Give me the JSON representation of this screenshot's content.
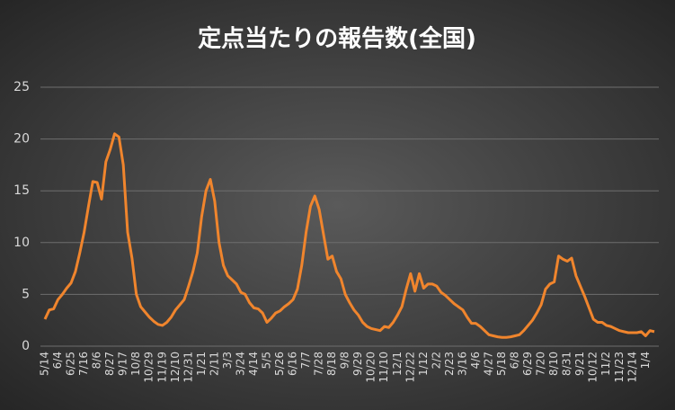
{
  "chart_data": {
    "type": "line",
    "title": "定点当たりの報告数(全国)",
    "categories": [
      "5/14",
      null,
      null,
      "6/4",
      null,
      null,
      "6/25",
      null,
      null,
      "7/16",
      null,
      null,
      "8/6",
      null,
      null,
      "8/27",
      null,
      null,
      "9/17",
      null,
      null,
      "10/8",
      null,
      null,
      "10/29",
      null,
      null,
      "11/19",
      null,
      null,
      "12/10",
      null,
      null,
      "12/31",
      null,
      null,
      "1/21",
      null,
      null,
      "2/11",
      null,
      null,
      "3/3",
      null,
      null,
      "3/24",
      null,
      null,
      "4/14",
      null,
      null,
      "5/5",
      null,
      null,
      "5/26",
      null,
      null,
      "6/16",
      null,
      null,
      "7/7",
      null,
      null,
      "7/28",
      null,
      null,
      "8/18",
      null,
      null,
      "9/8",
      null,
      null,
      "9/29",
      null,
      null,
      "10/20",
      null,
      null,
      "11/10",
      null,
      null,
      "12/1",
      null,
      null,
      "12/22",
      null,
      null,
      "1/12",
      null,
      null,
      "2/2",
      null,
      null,
      "2/23",
      null,
      null,
      "3/16",
      null,
      null,
      "4/6",
      null,
      null,
      "4/27",
      null,
      null,
      "5/18",
      null,
      null,
      "6/8",
      null,
      null,
      "6/29",
      null,
      null,
      "7/20",
      null,
      null,
      "8/10",
      null,
      null,
      "8/31",
      null,
      null,
      "9/21",
      null,
      null,
      "10/12",
      null,
      null,
      "11/2",
      null,
      null,
      "11/23",
      null,
      null,
      "12/14",
      null,
      null,
      "1/4",
      null,
      null
    ],
    "series": [
      {
        "name": "定点当たりの報告数",
        "color": "#f0852d",
        "values": [
          2.6,
          3.5,
          3.6,
          4.5,
          5.0,
          5.6,
          6.1,
          7.2,
          9.0,
          11.0,
          13.5,
          15.9,
          15.8,
          14.2,
          17.8,
          19.0,
          20.5,
          20.2,
          17.5,
          11.0,
          8.5,
          5.0,
          3.8,
          3.3,
          2.8,
          2.4,
          2.1,
          2.0,
          2.3,
          2.8,
          3.5,
          4.0,
          4.5,
          5.8,
          7.2,
          9.0,
          12.5,
          15.0,
          16.1,
          14.0,
          10.0,
          7.8,
          6.8,
          6.4,
          6.0,
          5.2,
          5.0,
          4.2,
          3.7,
          3.6,
          3.2,
          2.3,
          2.7,
          3.2,
          3.4,
          3.8,
          4.1,
          4.5,
          5.5,
          7.8,
          11.0,
          13.5,
          14.5,
          13.2,
          10.8,
          8.4,
          8.7,
          7.2,
          6.5,
          5.0,
          4.2,
          3.5,
          3.0,
          2.3,
          1.9,
          1.7,
          1.6,
          1.5,
          1.9,
          1.8,
          2.3,
          3.0,
          3.8,
          5.5,
          7.0,
          5.3,
          7.0,
          5.6,
          6.0,
          6.0,
          5.8,
          5.2,
          4.9,
          4.5,
          4.1,
          3.8,
          3.5,
          2.8,
          2.2,
          2.2,
          1.9,
          1.5,
          1.1,
          1.0,
          0.9,
          0.85,
          0.85,
          0.9,
          1.0,
          1.1,
          1.5,
          2.0,
          2.5,
          3.2,
          4.0,
          5.5,
          6.0,
          6.2,
          8.7,
          8.4,
          8.2,
          8.5,
          6.8,
          5.8,
          4.8,
          3.7,
          2.6,
          2.3,
          2.3,
          2.0,
          1.9,
          1.7,
          1.5,
          1.4,
          1.3,
          1.3,
          1.3,
          1.4,
          1.0,
          1.5,
          1.4
        ]
      }
    ],
    "ylim": [
      0,
      25
    ],
    "yticks": [
      0,
      5,
      10,
      15,
      20,
      25
    ],
    "grid": true
  }
}
